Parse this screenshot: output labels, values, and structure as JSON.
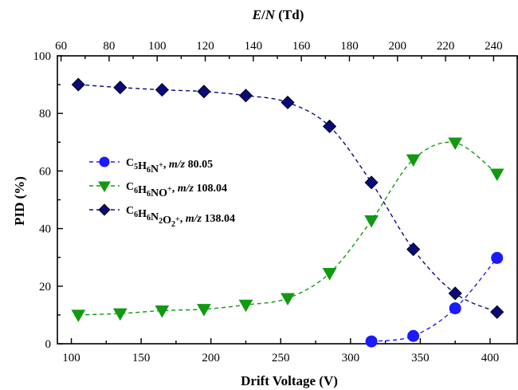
{
  "chart_data": {
    "type": "scatter",
    "xlabel": "Drift Voltage (V)",
    "ylabel": "PID (%)",
    "top_xlabel_parts": {
      "italic_1": "E",
      "slash": "/",
      "italic_2": "N",
      "rest": " (Td)"
    },
    "xlim": [
      90,
      420
    ],
    "ylim": [
      0,
      100
    ],
    "xticks": [
      100,
      150,
      200,
      250,
      300,
      350,
      400
    ],
    "yticks": [
      0,
      20,
      40,
      60,
      80,
      100
    ],
    "top_xticks": [
      60,
      80,
      100,
      120,
      140,
      160,
      180,
      200,
      220,
      240
    ],
    "top_xlim_en": [
      58.47,
      250.15
    ],
    "grid": false,
    "legend_position": "center-left",
    "series": [
      {
        "name": "C5H6N+, m/z 80.05",
        "legend": {
          "formula": [
            [
              "C",
              ""
            ],
            [
              "5",
              "sub"
            ],
            [
              "H",
              ""
            ],
            [
              "6",
              "sub"
            ],
            [
              "N",
              ""
            ],
            [
              "+",
              "sup"
            ]
          ],
          "mz_label": "m/z",
          "mz_value": " 80.05"
        },
        "color": "#1a1aff",
        "marker": "circle",
        "x": [
          315,
          345,
          375,
          405
        ],
        "y": [
          0.8,
          2.7,
          12.3,
          29.8
        ]
      },
      {
        "name": "C6H6NO+, m/z 108.04",
        "legend": {
          "formula": [
            [
              "C",
              ""
            ],
            [
              "6",
              "sub"
            ],
            [
              "H",
              ""
            ],
            [
              "6",
              "sub"
            ],
            [
              "NO",
              ""
            ],
            [
              "+",
              "sup"
            ]
          ],
          "mz_label": "m/z",
          "mz_value": " 108.04"
        },
        "color": "#109a10",
        "marker": "triangle-down",
        "x": [
          105,
          135,
          165,
          195,
          225,
          255,
          285,
          315,
          345,
          375,
          405
        ],
        "y": [
          10.0,
          10.5,
          11.5,
          12.0,
          13.5,
          15.8,
          24.5,
          42.8,
          64.0,
          69.8,
          59.0
        ]
      },
      {
        "name": "C6H6N2O2+, m/z 138.04",
        "legend": {
          "formula": [
            [
              "C",
              ""
            ],
            [
              "6",
              "sub"
            ],
            [
              "H",
              ""
            ],
            [
              "6",
              "sub"
            ],
            [
              "N",
              ""
            ],
            [
              "2",
              "sub"
            ],
            [
              "O",
              ""
            ],
            [
              "2",
              "sub"
            ],
            [
              "+",
              "sup"
            ]
          ],
          "mz_label": "m/z",
          "mz_value": " 138.04"
        },
        "color": "#0a0a7a",
        "marker": "diamond",
        "x": [
          105,
          135,
          165,
          195,
          225,
          255,
          285,
          315,
          345,
          375,
          405
        ],
        "y": [
          90.0,
          89.0,
          88.2,
          87.6,
          86.2,
          83.8,
          75.5,
          56.0,
          32.8,
          17.5,
          11.0
        ]
      }
    ]
  }
}
